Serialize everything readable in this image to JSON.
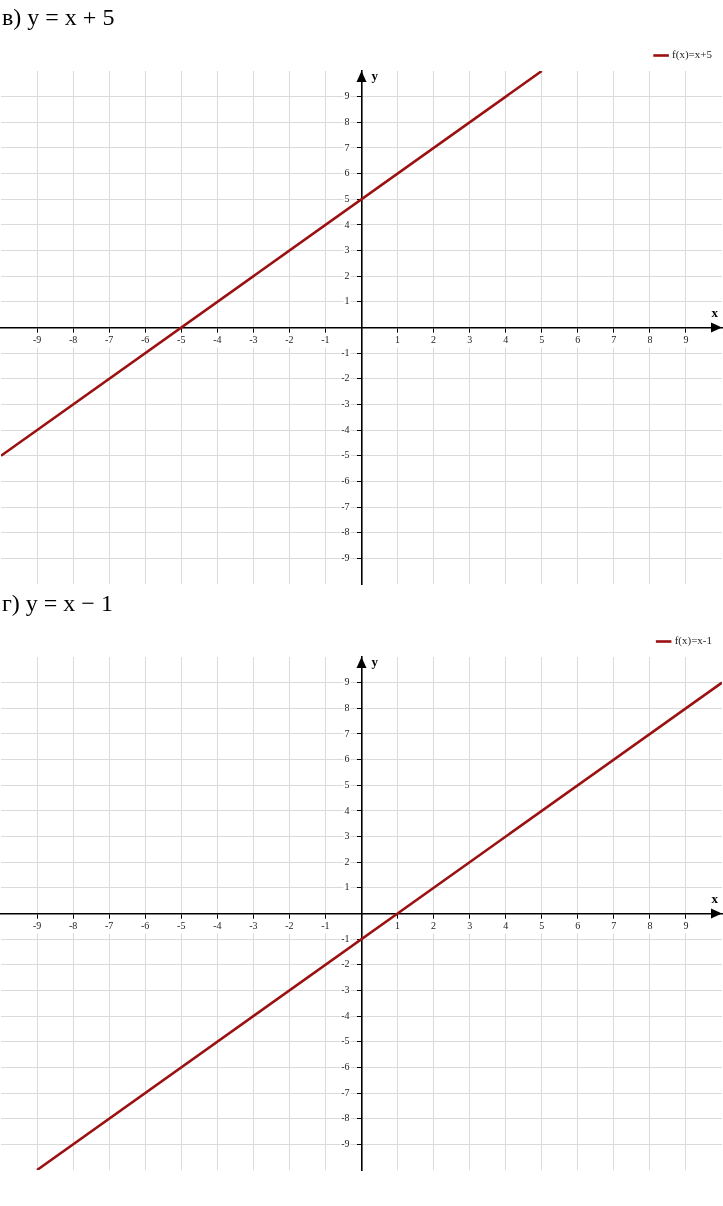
{
  "chart_data": [
    {
      "type": "line",
      "title": "в) y = x + 5",
      "xlabel": "x",
      "ylabel": "y",
      "xlim": [
        -10,
        10
      ],
      "ylim": [
        -10,
        10
      ],
      "xticks": [
        -9,
        -8,
        -7,
        -6,
        -5,
        -4,
        -3,
        -2,
        -1,
        1,
        2,
        3,
        4,
        5,
        6,
        7,
        8,
        9
      ],
      "yticks": [
        -9,
        -8,
        -7,
        -6,
        -5,
        -4,
        -3,
        -2,
        -1,
        1,
        2,
        3,
        4,
        5,
        6,
        7,
        8,
        9
      ],
      "grid": true,
      "legend": "top right",
      "marker": "none",
      "line_style": "solid",
      "series": [
        {
          "name": "f(x)=x+5",
          "color": "#9b1010",
          "x": [
            -10,
            5
          ],
          "values": [
            -5,
            10
          ]
        }
      ]
    },
    {
      "type": "line",
      "title": "г) y = x − 1",
      "xlabel": "x",
      "ylabel": "y",
      "xlim": [
        -10,
        10
      ],
      "ylim": [
        -10,
        10
      ],
      "xticks": [
        -9,
        -8,
        -7,
        -6,
        -5,
        -4,
        -3,
        -2,
        -1,
        1,
        2,
        3,
        4,
        5,
        6,
        7,
        8,
        9
      ],
      "yticks": [
        -9,
        -8,
        -7,
        -6,
        -5,
        -4,
        -3,
        -2,
        -1,
        1,
        2,
        3,
        4,
        5,
        6,
        7,
        8,
        9
      ],
      "grid": true,
      "legend": "top right",
      "marker": "none",
      "line_style": "solid",
      "series": [
        {
          "name": "f(x)=x-1",
          "color": "#9b1010",
          "x": [
            -9,
            10
          ],
          "values": [
            -10,
            9
          ]
        }
      ]
    }
  ]
}
